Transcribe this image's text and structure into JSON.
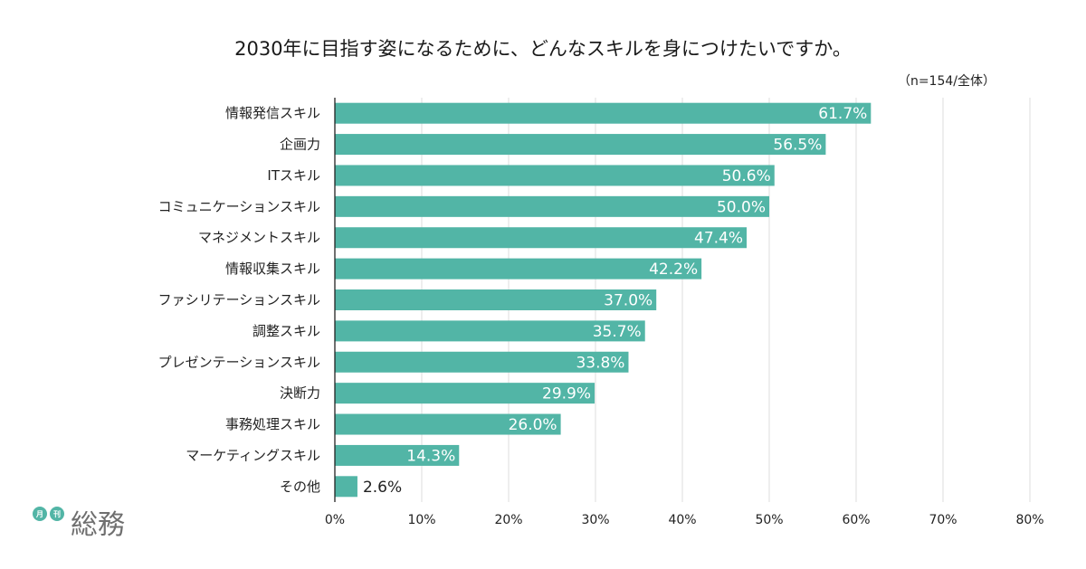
{
  "chart_data": {
    "type": "bar",
    "orientation": "horizontal",
    "title": "2030年に目指す姿になるために、どんなスキルを身につけたいですか。",
    "note": "（n=154/全体）",
    "categories": [
      "情報発信スキル",
      "企画力",
      "ITスキル",
      "コミュニケーションスキル",
      "マネジメントスキル",
      "情報収集スキル",
      "ファシリテーションスキル",
      "調整スキル",
      "プレゼンテーションスキル",
      "決断力",
      "事務処理スキル",
      "マーケティングスキル",
      "その他"
    ],
    "values": [
      61.7,
      56.5,
      50.6,
      50.0,
      47.4,
      42.2,
      37.0,
      35.7,
      33.8,
      29.9,
      26.0,
      14.3,
      2.6
    ],
    "value_labels": [
      "61.7%",
      "56.5%",
      "50.6%",
      "50.0%",
      "47.4%",
      "42.2%",
      "37.0%",
      "35.7%",
      "33.8%",
      "29.9%",
      "26.0%",
      "14.3%",
      "2.6%"
    ],
    "xlim": [
      0,
      80
    ],
    "xticks": [
      0,
      10,
      20,
      30,
      40,
      50,
      60,
      70,
      80
    ],
    "xtick_labels": [
      "0%",
      "10%",
      "20%",
      "30%",
      "40%",
      "50%",
      "60%",
      "70%",
      "80%"
    ],
    "grid": true,
    "bar_color": "#52b5a6"
  },
  "logo": {
    "small_1": "月",
    "small_2": "刊",
    "main": "総務",
    "color": "#52b5a6"
  }
}
